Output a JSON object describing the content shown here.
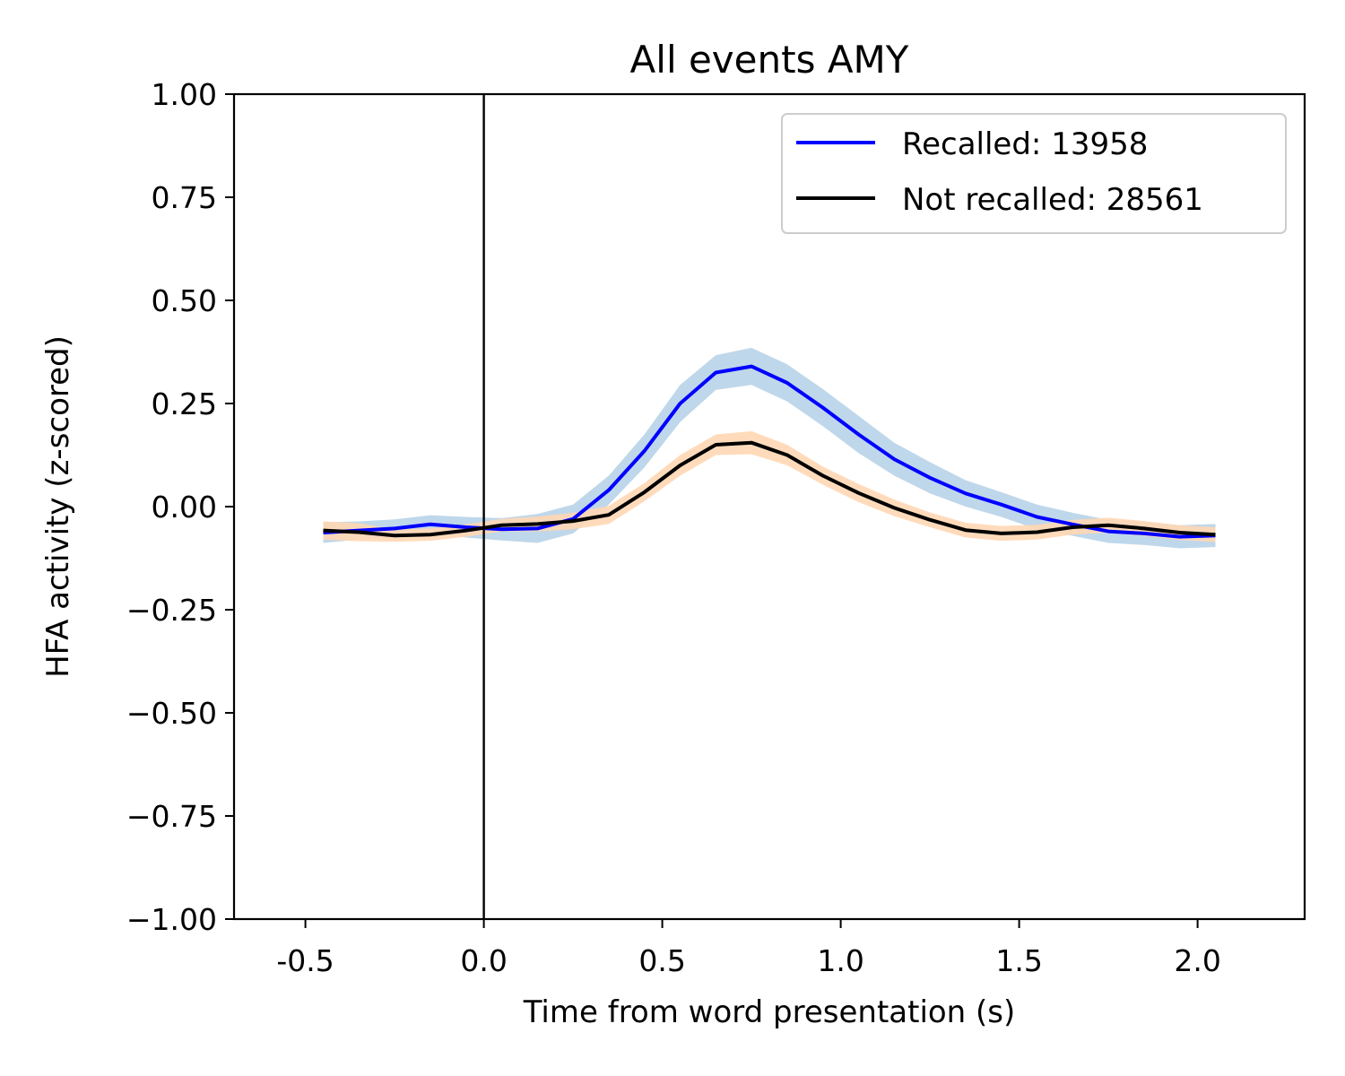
{
  "chart_data": {
    "type": "line",
    "title": "All events AMY",
    "xlabel": "Time from word presentation (s)",
    "ylabel": "HFA activity (z-scored)",
    "xlim": [
      -0.7,
      2.3
    ],
    "ylim": [
      -1.0,
      1.0
    ],
    "xticks": [
      -0.5,
      0.0,
      0.5,
      1.0,
      1.5,
      2.0
    ],
    "xtick_labels": [
      "-0.5",
      "0.0",
      "0.5",
      "1.0",
      "1.5",
      "2.0"
    ],
    "yticks": [
      -1.0,
      -0.75,
      -0.5,
      -0.25,
      0.0,
      0.25,
      0.5,
      0.75,
      1.0
    ],
    "ytick_labels": [
      "−1.00",
      "−0.75",
      "−0.50",
      "−0.25",
      "0.00",
      "0.25",
      "0.50",
      "0.75",
      "1.00"
    ],
    "vline_x": 0.0,
    "legend_position": "upper-right",
    "grid": false,
    "x": [
      -0.45,
      -0.35,
      -0.25,
      -0.15,
      -0.05,
      0.05,
      0.15,
      0.25,
      0.35,
      0.45,
      0.55,
      0.65,
      0.75,
      0.85,
      0.95,
      1.05,
      1.15,
      1.25,
      1.35,
      1.45,
      1.55,
      1.65,
      1.75,
      1.85,
      1.95,
      2.05
    ],
    "series": [
      {
        "name": "Recalled: 13958",
        "color": "#0000ff",
        "band_color": "#b8d3e8",
        "values": [
          -0.063,
          -0.058,
          -0.053,
          -0.043,
          -0.05,
          -0.055,
          -0.053,
          -0.03,
          0.04,
          0.135,
          0.25,
          0.325,
          0.34,
          0.3,
          0.24,
          0.175,
          0.115,
          0.07,
          0.032,
          0.005,
          -0.025,
          -0.043,
          -0.06,
          -0.065,
          -0.073,
          -0.07
        ],
        "band_halfwidth": [
          0.025,
          0.022,
          0.022,
          0.022,
          0.025,
          0.027,
          0.035,
          0.035,
          0.035,
          0.04,
          0.045,
          0.042,
          0.045,
          0.045,
          0.045,
          0.045,
          0.04,
          0.038,
          0.032,
          0.03,
          0.03,
          0.028,
          0.028,
          0.028,
          0.028,
          0.028
        ]
      },
      {
        "name": "Not recalled: 28561",
        "color": "#000000",
        "band_color": "#ffd7b4",
        "values": [
          -0.058,
          -0.062,
          -0.07,
          -0.068,
          -0.058,
          -0.045,
          -0.042,
          -0.035,
          -0.02,
          0.035,
          0.1,
          0.15,
          0.155,
          0.125,
          0.075,
          0.033,
          -0.003,
          -0.032,
          -0.057,
          -0.065,
          -0.062,
          -0.05,
          -0.045,
          -0.053,
          -0.063,
          -0.068
        ],
        "band_halfwidth": [
          0.022,
          0.022,
          0.015,
          0.015,
          0.015,
          0.015,
          0.018,
          0.02,
          0.022,
          0.022,
          0.025,
          0.025,
          0.028,
          0.025,
          0.022,
          0.022,
          0.02,
          0.018,
          0.018,
          0.018,
          0.018,
          0.018,
          0.018,
          0.018,
          0.018,
          0.018
        ]
      }
    ]
  }
}
